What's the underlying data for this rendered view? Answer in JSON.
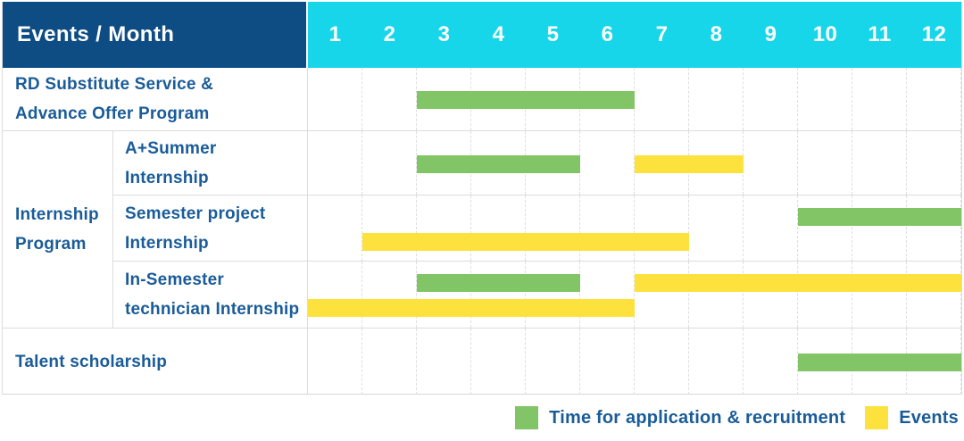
{
  "header": {
    "label": "Events / Month",
    "months": [
      "1",
      "2",
      "3",
      "4",
      "5",
      "6",
      "7",
      "8",
      "9",
      "10",
      "11",
      "12"
    ]
  },
  "colors": {
    "navy": "#0E4C84",
    "cyan": "#17D6EA",
    "green": "#82C566",
    "yellow": "#FDE23E",
    "text_blue": "#1A5C99",
    "grid_gray": "#DCDCDC"
  },
  "chart_data": {
    "type": "gantt",
    "title": "Events / Month",
    "x_axis": {
      "unit": "month",
      "ticks": [
        1,
        2,
        3,
        4,
        5,
        6,
        7,
        8,
        9,
        10,
        11,
        12
      ],
      "range": [
        1,
        12
      ],
      "grid": true
    },
    "group_label": "Internship Program",
    "group_label_lines": [
      "Internship",
      "Program"
    ],
    "rows": [
      {
        "group": "",
        "label": "RD Substitute Service & Advance Offer Program",
        "label_lines": [
          "RD Substitute Service &",
          "Advance Offer Program"
        ],
        "bars": [
          {
            "series": "application",
            "start_month": 3,
            "end_month": 6,
            "lane": "single"
          }
        ]
      },
      {
        "group": "Internship Program",
        "label": "A+Summer Internship",
        "label_lines": [
          "A+Summer",
          "Internship"
        ],
        "bars": [
          {
            "series": "application",
            "start_month": 3,
            "end_month": 5,
            "lane": "single"
          },
          {
            "series": "events",
            "start_month": 7,
            "end_month": 8,
            "lane": "single"
          }
        ]
      },
      {
        "group": "Internship Program",
        "label": "Semester project Internship",
        "label_lines": [
          "Semester project",
          "Internship"
        ],
        "bars": [
          {
            "series": "application",
            "start_month": 10,
            "end_month": 12,
            "lane": "top"
          },
          {
            "series": "events",
            "start_month": 2,
            "end_month": 7,
            "lane": "bottom"
          }
        ]
      },
      {
        "group": "Internship Program",
        "label": "In-Semester technician Internship",
        "label_lines": [
          "In-Semester",
          "technician Internship"
        ],
        "bars": [
          {
            "series": "application",
            "start_month": 3,
            "end_month": 5,
            "lane": "top"
          },
          {
            "series": "events",
            "start_month": 7,
            "end_month": 12,
            "lane": "top"
          },
          {
            "series": "events",
            "start_month": 1,
            "end_month": 6,
            "lane": "bottom"
          }
        ]
      },
      {
        "group": "",
        "label": "Talent scholarship",
        "label_lines": [
          "Talent scholarship"
        ],
        "bars": [
          {
            "series": "application",
            "start_month": 10,
            "end_month": 12,
            "lane": "single"
          }
        ]
      }
    ],
    "legend": [
      {
        "key": "application",
        "label": "Time for application & recruitment",
        "color": "#82C566"
      },
      {
        "key": "events",
        "label": "Events",
        "color": "#FDE23E"
      }
    ],
    "legend_position": "bottom-right"
  }
}
